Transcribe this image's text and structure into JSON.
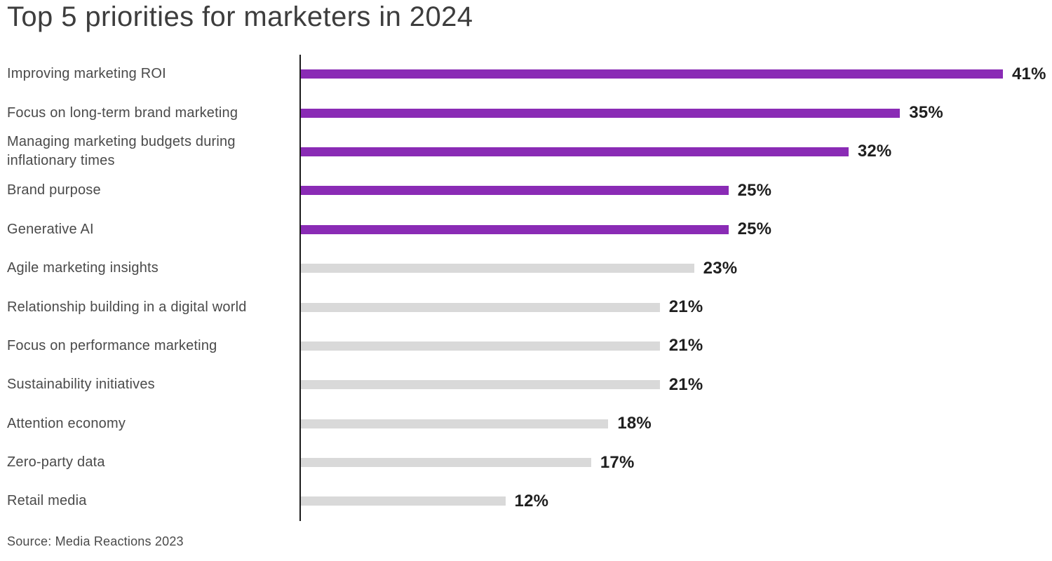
{
  "title": "Top 5 priorities for marketers in 2024",
  "source": "Source: Media Reactions 2023",
  "colors": {
    "highlight_bar": "#8A2BB5",
    "muted_bar": "#D9D9D9",
    "axis": "#1A1A1A",
    "title_text": "#3D3D3D",
    "label_text": "#4A4A4A",
    "value_text": "#1F1F1F"
  },
  "chart_data": {
    "type": "bar",
    "orientation": "horizontal",
    "title": "Top 5 priorities for marketers in 2024",
    "xlabel": "",
    "ylabel": "",
    "xlim": [
      0,
      41
    ],
    "grid": false,
    "legend": false,
    "unit": "%",
    "highlighted_count": 5,
    "categories": [
      "Improving marketing ROI",
      "Focus on long-term brand marketing",
      "Managing marketing budgets during inflationary times",
      "Brand purpose",
      "Generative AI",
      "Agile marketing insights",
      "Relationship building in a digital world",
      "Focus on performance marketing",
      "Sustainability initiatives",
      "Attention economy",
      "Zero-party data",
      "Retail media"
    ],
    "values": [
      41,
      35,
      32,
      25,
      25,
      23,
      21,
      21,
      21,
      18,
      17,
      12
    ],
    "value_labels": [
      "41%",
      "35%",
      "32%",
      "25%",
      "25%",
      "23%",
      "21%",
      "21%",
      "21%",
      "18%",
      "17%",
      "12%"
    ],
    "source": "Source: Media Reactions 2023"
  }
}
